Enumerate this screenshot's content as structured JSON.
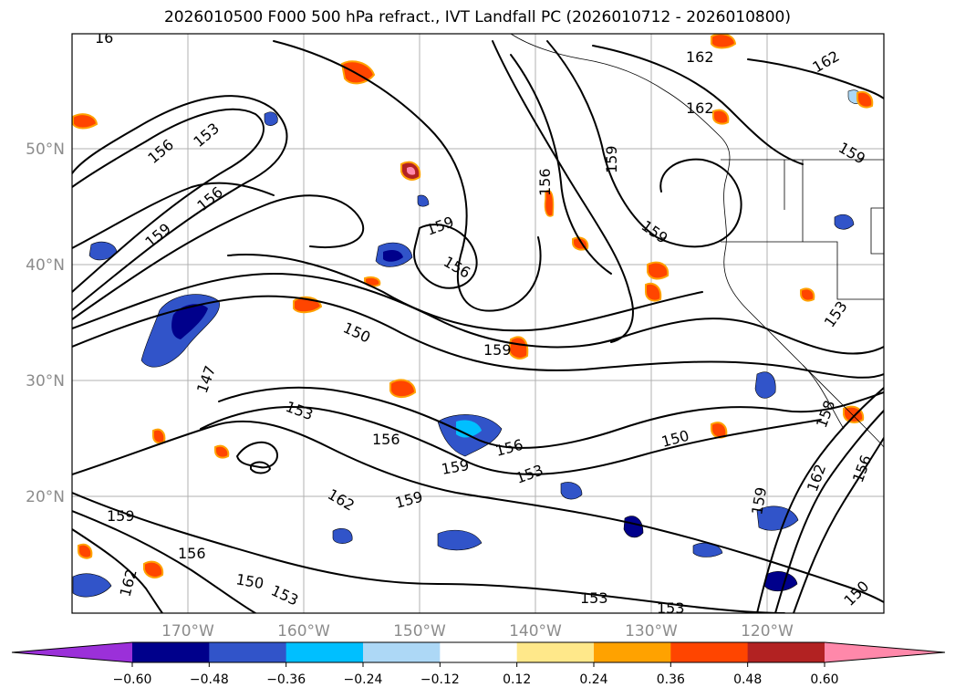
{
  "title": "2026010500 F000 500 hPa refract., IVT Landfall PC (2026010712 - 2026010800)",
  "map": {
    "lon_ticks": [
      "170°W",
      "160°W",
      "150°W",
      "140°W",
      "130°W",
      "120°W"
    ],
    "lat_ticks": [
      "50°N",
      "40°N",
      "30°N",
      "20°N"
    ],
    "gridlines": true
  },
  "colorbar": {
    "ticks": [
      "−0.60",
      "−0.48",
      "−0.36",
      "−0.24",
      "−0.12",
      "0.12",
      "0.24",
      "0.36",
      "0.48",
      "0.60"
    ],
    "colors": [
      "#9b30d9",
      "#00008b",
      "#3154c9",
      "#00bfff",
      "#add8f6",
      "#ffffff",
      "#ffe88a",
      "#ffa200",
      "#ff4500",
      "#b22222",
      "#ff88aa"
    ],
    "extend": "both"
  },
  "contour_labels": [
    {
      "text": "162"
    },
    {
      "text": "162"
    },
    {
      "text": "162"
    },
    {
      "text": "159"
    },
    {
      "text": "159"
    },
    {
      "text": "159"
    },
    {
      "text": "159"
    },
    {
      "text": "156"
    },
    {
      "text": "156"
    },
    {
      "text": "156"
    },
    {
      "text": "153"
    },
    {
      "text": "156"
    },
    {
      "text": "159"
    },
    {
      "text": "150"
    },
    {
      "text": "159"
    },
    {
      "text": "147"
    },
    {
      "text": "153"
    },
    {
      "text": "156"
    },
    {
      "text": "156"
    },
    {
      "text": "159"
    },
    {
      "text": "153"
    },
    {
      "text": "150"
    },
    {
      "text": "159"
    },
    {
      "text": "162"
    },
    {
      "text": "159"
    },
    {
      "text": "156"
    },
    {
      "text": "150"
    },
    {
      "text": "153"
    },
    {
      "text": "153"
    },
    {
      "text": "153"
    },
    {
      "text": "153"
    },
    {
      "text": "158"
    },
    {
      "text": "162"
    },
    {
      "text": "156"
    },
    {
      "text": "150"
    },
    {
      "text": "159"
    },
    {
      "text": "162"
    },
    {
      "text": "16"
    }
  ]
}
